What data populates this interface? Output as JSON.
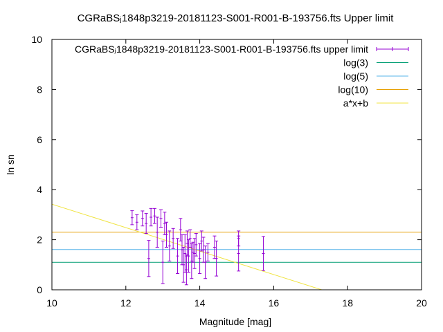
{
  "chart_data": {
    "type": "scatter",
    "title": "CGRaBSⱼ1848p3219-20181123-S001-R001-B-193756.fts Upper limit",
    "xlabel": "Magnitude [mag]",
    "ylabel": "ln sn",
    "xlim": [
      10,
      20
    ],
    "ylim": [
      0,
      10
    ],
    "x_ticks": [
      "10",
      "12",
      "14",
      "16",
      "18",
      "20"
    ],
    "y_ticks": [
      "0",
      "2",
      "4",
      "6",
      "8",
      "10"
    ],
    "x_tick_values": [
      10,
      12,
      14,
      16,
      18,
      20
    ],
    "y_tick_values": [
      0,
      2,
      4,
      6,
      8,
      10
    ],
    "grid": false,
    "legend_position": "top-right",
    "series": [
      {
        "name": "CGRaBSⱼ1848p3219-20181123-S001-R001-B-193756.fts upper limit",
        "kind": "errorbars",
        "color": "#9400d3",
        "points": [
          {
            "x": 12.17,
            "y": 2.88,
            "yerr": 0.28
          },
          {
            "x": 12.3,
            "y": 2.7,
            "yerr": 0.3
          },
          {
            "x": 12.45,
            "y": 2.85,
            "yerr": 0.3
          },
          {
            "x": 12.55,
            "y": 2.65,
            "yerr": 0.4
          },
          {
            "x": 12.62,
            "y": 1.25,
            "yerr": 0.72
          },
          {
            "x": 12.68,
            "y": 2.9,
            "yerr": 0.35
          },
          {
            "x": 12.78,
            "y": 2.95,
            "yerr": 0.3
          },
          {
            "x": 12.85,
            "y": 2.3,
            "yerr": 0.6
          },
          {
            "x": 12.95,
            "y": 2.85,
            "yerr": 0.35
          },
          {
            "x": 13.0,
            "y": 1.1,
            "yerr": 0.85
          },
          {
            "x": 13.05,
            "y": 2.65,
            "yerr": 0.45
          },
          {
            "x": 13.1,
            "y": 2.2,
            "yerr": 0.5
          },
          {
            "x": 13.18,
            "y": 1.75,
            "yerr": 0.6
          },
          {
            "x": 13.28,
            "y": 2.05,
            "yerr": 0.4
          },
          {
            "x": 13.4,
            "y": 1.35,
            "yerr": 0.7
          },
          {
            "x": 13.48,
            "y": 2.4,
            "yerr": 0.45
          },
          {
            "x": 13.52,
            "y": 1.6,
            "yerr": 0.6
          },
          {
            "x": 13.56,
            "y": 1.0,
            "yerr": 0.7
          },
          {
            "x": 13.6,
            "y": 1.45,
            "yerr": 0.75
          },
          {
            "x": 13.64,
            "y": 0.8,
            "yerr": 0.6
          },
          {
            "x": 13.66,
            "y": 1.85,
            "yerr": 0.5
          },
          {
            "x": 13.7,
            "y": 1.35,
            "yerr": 0.65
          },
          {
            "x": 13.74,
            "y": 2.05,
            "yerr": 0.35
          },
          {
            "x": 13.78,
            "y": 1.15,
            "yerr": 0.7
          },
          {
            "x": 13.82,
            "y": 1.5,
            "yerr": 0.4
          },
          {
            "x": 13.86,
            "y": 1.45,
            "yerr": 0.6
          },
          {
            "x": 13.9,
            "y": 1.8,
            "yerr": 0.45
          },
          {
            "x": 14.0,
            "y": 1.25,
            "yerr": 0.6
          },
          {
            "x": 14.05,
            "y": 1.95,
            "yerr": 0.4
          },
          {
            "x": 14.1,
            "y": 1.6,
            "yerr": 0.5
          },
          {
            "x": 14.15,
            "y": 1.1,
            "yerr": 0.65
          },
          {
            "x": 14.22,
            "y": 1.5,
            "yerr": 0.35
          },
          {
            "x": 14.4,
            "y": 1.7,
            "yerr": 0.45
          },
          {
            "x": 14.45,
            "y": 1.25,
            "yerr": 0.7
          },
          {
            "x": 15.05,
            "y": 1.45,
            "yerr": 0.7
          },
          {
            "x": 15.05,
            "y": 2.05,
            "yerr": 0.3
          },
          {
            "x": 15.72,
            "y": 1.45,
            "yerr": 0.68
          }
        ]
      },
      {
        "name": "log(3)",
        "kind": "hline",
        "color": "#009e73",
        "y": 1.0986
      },
      {
        "name": "log(5)",
        "kind": "hline",
        "color": "#56b4e9",
        "y": 1.6094
      },
      {
        "name": "log(10)",
        "kind": "hline",
        "color": "#e69f00",
        "y": 2.3026
      },
      {
        "name": "a*x+b",
        "kind": "line",
        "color": "#f0e442",
        "x": [
          10,
          17.3
        ],
        "y": [
          3.42,
          0
        ]
      }
    ]
  }
}
